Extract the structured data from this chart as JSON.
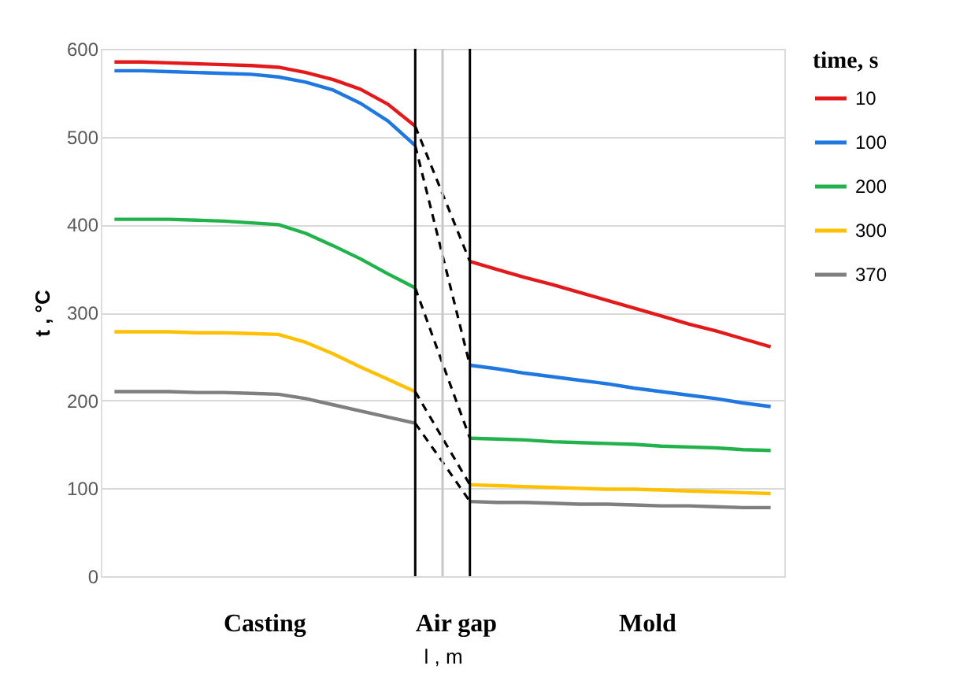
{
  "chart_data": {
    "type": "line",
    "xlabel": "l , m",
    "ylabel": "t , °C",
    "legend_title": "time, s",
    "categories": [
      null,
      null,
      null,
      null,
      null,
      null,
      null,
      null,
      null,
      null,
      null,
      null,
      null,
      null,
      null,
      null,
      null,
      null,
      null,
      null,
      null,
      null,
      null,
      null,
      null
    ],
    "ylim": [
      0,
      600
    ],
    "yticks": [
      0,
      100,
      200,
      300,
      400,
      500,
      600
    ],
    "grid": "y",
    "legend": "right",
    "line_style": "solid",
    "marker": "none",
    "series": [
      {
        "name": "10",
        "color": "#e31a1c",
        "values": [
          585,
          585,
          584,
          583,
          582,
          581,
          579,
          573,
          565,
          554,
          537,
          512,
          null,
          358,
          349,
          340,
          332,
          323,
          314,
          305,
          296,
          287,
          279,
          270,
          261
        ]
      },
      {
        "name": "100",
        "color": "#1f77e0",
        "values": [
          575,
          575,
          574,
          573,
          572,
          571,
          568,
          562,
          553,
          538,
          518,
          490,
          null,
          240,
          236,
          231,
          227,
          223,
          219,
          214,
          210,
          206,
          202,
          197,
          193
        ]
      },
      {
        "name": "200",
        "color": "#22b24c",
        "values": [
          406,
          406,
          406,
          405,
          404,
          402,
          400,
          390,
          376,
          361,
          344,
          328,
          null,
          157,
          156,
          155,
          153,
          152,
          151,
          150,
          148,
          147,
          146,
          144,
          143
        ]
      },
      {
        "name": "300",
        "color": "#ffc000",
        "values": [
          278,
          278,
          278,
          277,
          277,
          276,
          275,
          266,
          253,
          238,
          224,
          210,
          null,
          104,
          103,
          102,
          101,
          100,
          99,
          99,
          98,
          97,
          96,
          95,
          94
        ]
      },
      {
        "name": "370",
        "color": "#7f7f7f",
        "values": [
          210,
          210,
          210,
          209,
          209,
          208,
          207,
          202,
          195,
          188,
          181,
          174,
          null,
          85,
          84,
          84,
          83,
          82,
          82,
          81,
          80,
          80,
          79,
          78,
          78
        ]
      },
      {
        "color": "#000000",
        "line_style": "dashed",
        "values": [
          null,
          null,
          null,
          null,
          null,
          null,
          null,
          null,
          null,
          null,
          null,
          512,
          435,
          358,
          null,
          null,
          null,
          null,
          null,
          null,
          null,
          null,
          null,
          null,
          null
        ]
      },
      {
        "color": "#000000",
        "line_style": "dashed",
        "values": [
          null,
          null,
          null,
          null,
          null,
          null,
          null,
          null,
          null,
          null,
          null,
          490,
          365,
          240,
          null,
          null,
          null,
          null,
          null,
          null,
          null,
          null,
          null,
          null,
          null
        ]
      },
      {
        "color": "#000000",
        "line_style": "dashed",
        "values": [
          null,
          null,
          null,
          null,
          null,
          null,
          null,
          null,
          null,
          null,
          null,
          328,
          242,
          157,
          null,
          null,
          null,
          null,
          null,
          null,
          null,
          null,
          null,
          null,
          null
        ]
      },
      {
        "color": "#000000",
        "line_style": "dashed",
        "values": [
          null,
          null,
          null,
          null,
          null,
          null,
          null,
          null,
          null,
          null,
          null,
          210,
          157,
          104,
          null,
          null,
          null,
          null,
          null,
          null,
          null,
          null,
          null,
          null,
          null
        ]
      },
      {
        "color": "#000000",
        "line_style": "dashed",
        "values": [
          null,
          null,
          null,
          null,
          null,
          null,
          null,
          null,
          null,
          null,
          null,
          174,
          130,
          85,
          null,
          null,
          null,
          null,
          null,
          null,
          null,
          null,
          null,
          null,
          null
        ]
      }
    ],
    "annotations": [
      "Casting",
      "Air gap",
      "Mold"
    ]
  }
}
